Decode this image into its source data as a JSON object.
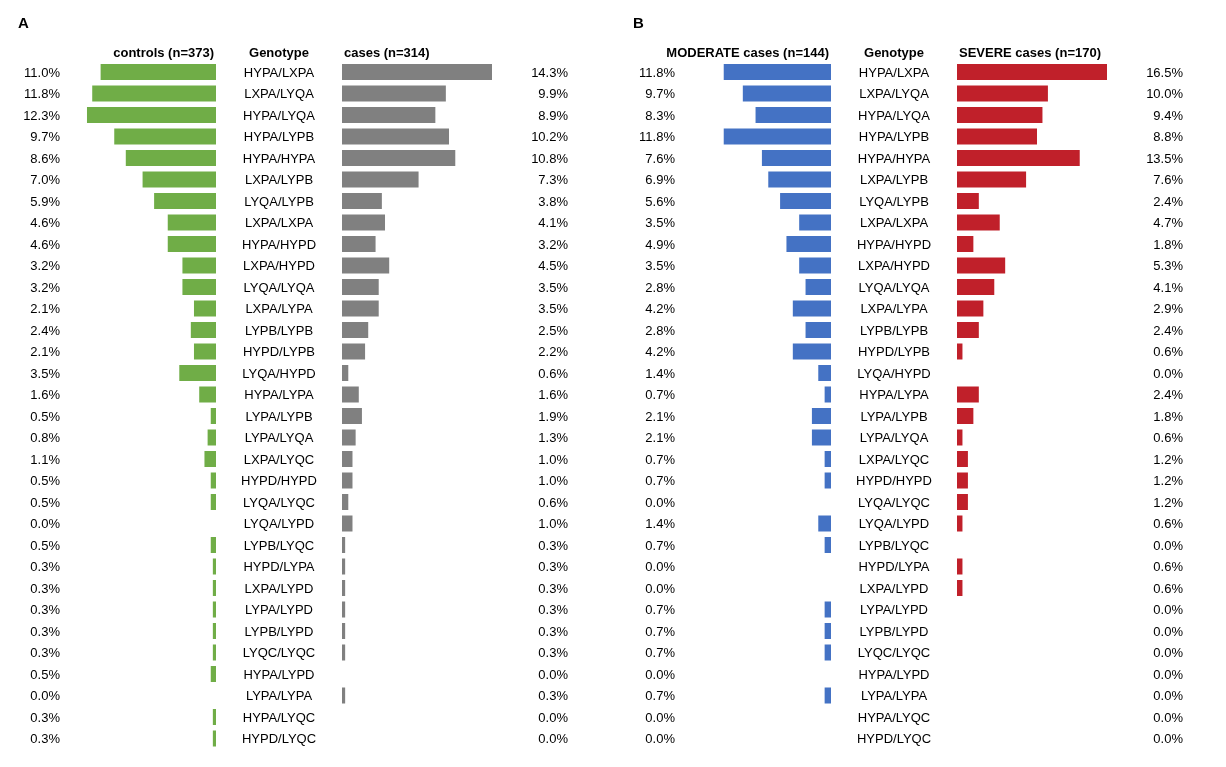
{
  "chart_data": [
    {
      "type": "bar",
      "orientation": "horizontal",
      "title": "A",
      "ylabel": "Genotype",
      "categories": [
        "HYPA/LXPA",
        "LXPA/LYQA",
        "HYPA/LYQA",
        "HYPA/LYPB",
        "HYPA/HYPA",
        "LXPA/LYPB",
        "LYQA/LYPB",
        "LXPA/LXPA",
        "HYPA/HYPD",
        "LXPA/HYPD",
        "LYQA/LYQA",
        "LXPA/LYPA",
        "LYPB/LYPB",
        "HYPD/LYPB",
        "LYQA/HYPD",
        "HYPA/LYPA",
        "LYPA/LYPB",
        "LYPA/LYQA",
        "LXPA/LYQC",
        "HYPD/HYPD",
        "LYQA/LYQC",
        "LYQA/LYPD",
        "LYPB/LYQC",
        "HYPD/LYPA",
        "LXPA/LYPD",
        "LYPA/LYPD",
        "LYPB/LYPD",
        "LYQC/LYQC",
        "HYPA/LYPD",
        "LYPA/LYPA",
        "HYPA/LYQC",
        "HYPD/LYQC"
      ],
      "series": [
        {
          "name": "controls (n=373)",
          "color": "#70ad47",
          "values": [
            11.0,
            11.8,
            12.3,
            9.7,
            8.6,
            7.0,
            5.9,
            4.6,
            4.6,
            3.2,
            3.2,
            2.1,
            2.4,
            2.1,
            3.5,
            1.6,
            0.5,
            0.8,
            1.1,
            0.5,
            0.5,
            0.0,
            0.5,
            0.3,
            0.3,
            0.3,
            0.3,
            0.3,
            0.5,
            0.0,
            0.3,
            0.3
          ],
          "value_labels": [
            "11.0%",
            "11.8%",
            "12.3%",
            "9.7%",
            "8.6%",
            "7.0%",
            "5.9%",
            "4.6%",
            "4.6%",
            "3.2%",
            "3.2%",
            "2.1%",
            "2.4%",
            "2.1%",
            "3.5%",
            "1.6%",
            "0.5%",
            "0.8%",
            "1.1%",
            "0.5%",
            "0.5%",
            "0.0%",
            "0.5%",
            "0.3%",
            "0.3%",
            "0.3%",
            "0.3%",
            "0.3%",
            "0.5%",
            "0.0%",
            "0.3%",
            "0.3%"
          ]
        }
      ]
    },
    {
      "type": "bar",
      "orientation": "horizontal",
      "categories": [
        null,
        null,
        null,
        null,
        null,
        null,
        null,
        null,
        null,
        null,
        null,
        null,
        null,
        null,
        null,
        null,
        null,
        null,
        null,
        null,
        null,
        null,
        null,
        null,
        null,
        null,
        null,
        null,
        null,
        null,
        null,
        null
      ],
      "series": [
        {
          "name": "cases (n=314)",
          "color": "#808080",
          "values": [
            14.3,
            9.9,
            8.9,
            10.2,
            10.8,
            7.3,
            3.8,
            4.1,
            3.2,
            4.5,
            3.5,
            3.5,
            2.5,
            2.2,
            0.6,
            1.6,
            1.9,
            1.3,
            1.0,
            1.0,
            0.6,
            1.0,
            0.3,
            0.3,
            0.3,
            0.3,
            0.3,
            0.3,
            0.0,
            0.3,
            0.0,
            0.0
          ],
          "value_labels": [
            "14.3%",
            "9.9%",
            "8.9%",
            "10.2%",
            "10.8%",
            "7.3%",
            "3.8%",
            "4.1%",
            "3.2%",
            "4.5%",
            "3.5%",
            "3.5%",
            "2.5%",
            "2.2%",
            "0.6%",
            "1.6%",
            "1.9%",
            "1.3%",
            "1.0%",
            "1.0%",
            "0.6%",
            "1.0%",
            "0.3%",
            "0.3%",
            "0.3%",
            "0.3%",
            "0.3%",
            "0.3%",
            "0.0%",
            "0.3%",
            "0.0%",
            "0.0%"
          ]
        }
      ]
    },
    {
      "type": "bar",
      "orientation": "horizontal",
      "title": "B",
      "categories": [
        null,
        null,
        null,
        null,
        null,
        null,
        null,
        null,
        null,
        null,
        null,
        null,
        null,
        null,
        null,
        null,
        null,
        null,
        null,
        null,
        null,
        null,
        null,
        null,
        null,
        null,
        null,
        null,
        null,
        null,
        null,
        null
      ],
      "series": [
        {
          "name": "MODERATE cases (n=144)",
          "color": "#4472c4",
          "values": [
            11.8,
            9.7,
            8.3,
            11.8,
            7.6,
            6.9,
            5.6,
            3.5,
            4.9,
            3.5,
            2.8,
            4.2,
            2.8,
            4.2,
            1.4,
            0.7,
            2.1,
            2.1,
            0.7,
            0.7,
            0.0,
            1.4,
            0.7,
            0.0,
            0.0,
            0.7,
            0.7,
            0.7,
            0.0,
            0.7,
            0.0,
            0.0
          ],
          "value_labels": [
            "11.8%",
            "9.7%",
            "8.3%",
            "11.8%",
            "7.6%",
            "6.9%",
            "5.6%",
            "3.5%",
            "4.9%",
            "3.5%",
            "2.8%",
            "4.2%",
            "2.8%",
            "4.2%",
            "1.4%",
            "0.7%",
            "2.1%",
            "2.1%",
            "0.7%",
            "0.7%",
            "0.0%",
            "1.4%",
            "0.7%",
            "0.0%",
            "0.0%",
            "0.7%",
            "0.7%",
            "0.7%",
            "0.0%",
            "0.7%",
            "0.0%",
            "0.0%"
          ]
        }
      ]
    },
    {
      "type": "bar",
      "orientation": "horizontal",
      "ylabel": "Genotype",
      "categories": [
        "HYPA/LXPA",
        "LXPA/LYQA",
        "HYPA/LYQA",
        "HYPA/LYPB",
        "HYPA/HYPA",
        "LXPA/LYPB",
        "LYQA/LYPB",
        "LXPA/LXPA",
        "HYPA/HYPD",
        "LXPA/HYPD",
        "LYQA/LYQA",
        "LXPA/LYPA",
        "LYPB/LYPB",
        "HYPD/LYPB",
        "LYQA/HYPD",
        "HYPA/LYPA",
        "LYPA/LYPB",
        "LYPA/LYQA",
        "LXPA/LYQC",
        "HYPD/HYPD",
        "LYQA/LYQC",
        "LYQA/LYPD",
        "LYPB/LYQC",
        "HYPD/LYPA",
        "LXPA/LYPD",
        "LYPA/LYPD",
        "LYPB/LYPD",
        "LYQC/LYQC",
        "HYPA/LYPD",
        "LYPA/LYPA",
        "HYPA/LYQC",
        "HYPD/LYQC"
      ],
      "series": [
        {
          "name": "SEVERE cases (n=170)",
          "color": "#c0202a",
          "values": [
            16.5,
            10.0,
            9.4,
            8.8,
            13.5,
            7.6,
            2.4,
            4.7,
            1.8,
            5.3,
            4.1,
            2.9,
            2.4,
            0.6,
            0.0,
            2.4,
            1.8,
            0.6,
            1.2,
            1.2,
            1.2,
            0.6,
            0.0,
            0.6,
            0.6,
            0.0,
            0.0,
            0.0,
            0.0,
            0.0,
            0.0,
            0.0
          ],
          "value_labels": [
            "16.5%",
            "10.0%",
            "9.4%",
            "8.8%",
            "13.5%",
            "7.6%",
            "2.4%",
            "4.7%",
            "1.8%",
            "5.3%",
            "4.1%",
            "2.9%",
            "2.4%",
            "0.6%",
            "0.0%",
            "2.4%",
            "1.8%",
            "0.6%",
            "1.2%",
            "1.2%",
            "1.2%",
            "0.6%",
            "0.0%",
            "0.6%",
            "0.6%",
            "0.0%",
            "0.0%",
            "0.0%",
            "0.0%",
            "0.0%",
            "0.0%",
            "0.0%"
          ]
        }
      ]
    }
  ]
}
